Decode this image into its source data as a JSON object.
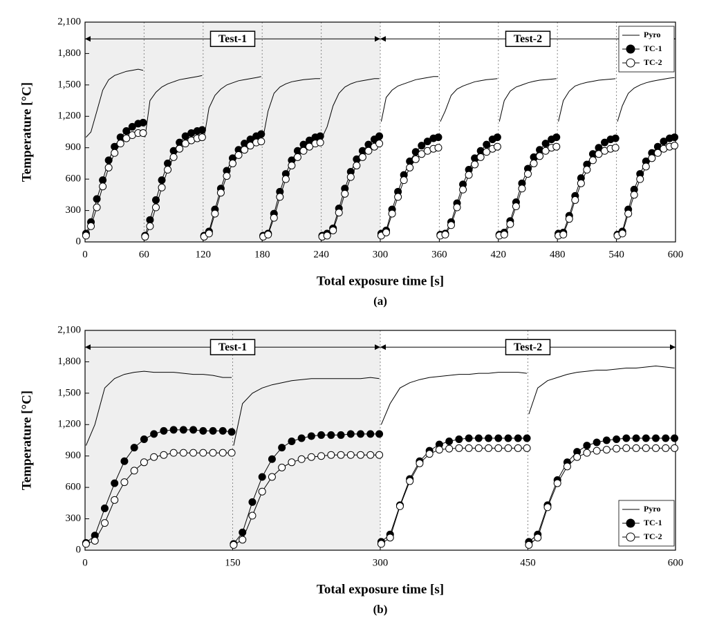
{
  "chart_data": [
    {
      "type": "line",
      "caption": "(a)",
      "x_label": "Total exposure time [s]",
      "y_label": "Temperature [°C]",
      "xlim": [
        0,
        600
      ],
      "xticks": [
        0,
        60,
        120,
        180,
        240,
        300,
        360,
        420,
        480,
        540,
        600
      ],
      "ylim": [
        0,
        2100
      ],
      "yticks": [
        0,
        300,
        600,
        900,
        {
          "value": 1200,
          "label": "1,200"
        },
        {
          "value": 1500,
          "label": "1,500"
        },
        {
          "value": 1800,
          "label": "1,800"
        },
        {
          "value": 2100,
          "label": "2,100"
        }
      ],
      "legend": "upper right",
      "spans": [
        {
          "label": "Test-1",
          "xlim": [
            0,
            300
          ],
          "y": 1940,
          "shaded": true
        },
        {
          "label": "Test-2",
          "xlim": [
            300,
            600
          ],
          "y": 1940,
          "shaded": false
        }
      ],
      "dividers": [
        60,
        120,
        180,
        240,
        300,
        360,
        420,
        480,
        540
      ],
      "x": [
        1,
        6,
        12,
        18,
        24,
        30,
        36,
        42,
        48,
        54,
        59,
        60,
        61,
        66,
        72,
        78,
        84,
        90,
        96,
        102,
        108,
        114,
        119,
        120,
        121,
        126,
        132,
        138,
        144,
        150,
        156,
        162,
        168,
        174,
        179,
        180,
        181,
        186,
        192,
        198,
        204,
        210,
        216,
        222,
        228,
        234,
        239,
        240,
        241,
        246,
        252,
        258,
        264,
        270,
        276,
        282,
        288,
        294,
        299,
        300,
        301,
        306,
        312,
        318,
        324,
        330,
        336,
        342,
        348,
        354,
        359,
        360,
        361,
        366,
        372,
        378,
        384,
        390,
        396,
        402,
        408,
        414,
        419,
        420,
        421,
        426,
        432,
        438,
        444,
        450,
        456,
        462,
        468,
        474,
        479,
        480,
        481,
        486,
        492,
        498,
        504,
        510,
        516,
        522,
        528,
        534,
        539,
        540,
        541,
        546,
        552,
        558,
        564,
        570,
        576,
        582,
        588,
        594,
        599
      ],
      "series": [
        {
          "name": "Pyro",
          "color": "#000000",
          "values": [
            1000,
            1050,
            1250,
            1450,
            1550,
            1590,
            1610,
            1630,
            1640,
            1650,
            1640,
            null,
            1000,
            1350,
            1430,
            1480,
            1510,
            1530,
            1550,
            1560,
            1570,
            1580,
            1590,
            null,
            1000,
            1280,
            1400,
            1460,
            1500,
            1520,
            1540,
            1550,
            1560,
            1570,
            1580,
            null,
            1000,
            1250,
            1420,
            1480,
            1510,
            1530,
            1540,
            1550,
            1555,
            1560,
            1560,
            null,
            1000,
            1100,
            1300,
            1420,
            1480,
            1510,
            1530,
            1540,
            1550,
            1560,
            1560,
            null,
            1150,
            1380,
            1450,
            1490,
            1510,
            1530,
            1550,
            1560,
            1570,
            1580,
            1580,
            null,
            1150,
            1250,
            1400,
            1460,
            1490,
            1510,
            1530,
            1540,
            1550,
            1555,
            1560,
            null,
            1150,
            1350,
            1440,
            1480,
            1500,
            1520,
            1535,
            1545,
            1550,
            1555,
            1560,
            null,
            1150,
            1350,
            1440,
            1490,
            1510,
            1525,
            1535,
            1545,
            1550,
            1555,
            1560,
            null,
            1150,
            1300,
            1420,
            1470,
            1500,
            1520,
            1535,
            1545,
            1555,
            1565,
            1570
          ]
        },
        {
          "name": "TC-1",
          "color": "#000000",
          "marker": "circle",
          "marker_face": "#000000",
          "values": [
            80,
            190,
            410,
            590,
            780,
            910,
            1000,
            1060,
            1100,
            1130,
            1140,
            null,
            60,
            210,
            400,
            590,
            750,
            870,
            950,
            1010,
            1040,
            1060,
            1070,
            null,
            60,
            100,
            310,
            510,
            680,
            800,
            880,
            940,
            980,
            1010,
            1030,
            null,
            60,
            80,
            270,
            480,
            650,
            780,
            870,
            930,
            970,
            1000,
            1010,
            null,
            60,
            80,
            130,
            320,
            510,
            670,
            790,
            870,
            930,
            980,
            1010,
            null,
            80,
            110,
            310,
            480,
            640,
            770,
            860,
            920,
            960,
            990,
            1000,
            null,
            70,
            80,
            190,
            370,
            550,
            690,
            800,
            870,
            930,
            980,
            1000,
            null,
            70,
            90,
            200,
            380,
            560,
            700,
            810,
            880,
            940,
            980,
            1000,
            null,
            80,
            90,
            250,
            440,
            610,
            740,
            840,
            900,
            950,
            980,
            990,
            null,
            70,
            100,
            310,
            500,
            650,
            770,
            850,
            910,
            960,
            990,
            1000
          ]
        },
        {
          "name": "TC-2",
          "color": "#000000",
          "marker": "circle",
          "marker_face": "#ffffff",
          "values": [
            60,
            150,
            330,
            530,
            710,
            850,
            940,
            990,
            1020,
            1040,
            1040,
            null,
            50,
            150,
            330,
            520,
            690,
            810,
            890,
            940,
            970,
            990,
            1000,
            null,
            50,
            80,
            270,
            470,
            630,
            750,
            830,
            880,
            920,
            950,
            960,
            null,
            50,
            70,
            230,
            430,
            600,
            730,
            810,
            870,
            910,
            940,
            950,
            null,
            50,
            60,
            110,
            280,
            460,
            620,
            730,
            810,
            870,
            910,
            940,
            null,
            60,
            90,
            270,
            430,
            590,
            710,
            790,
            840,
            870,
            890,
            900,
            null,
            60,
            70,
            160,
            330,
            500,
            640,
            740,
            810,
            860,
            890,
            910,
            null,
            60,
            70,
            170,
            340,
            510,
            650,
            750,
            820,
            870,
            900,
            910,
            null,
            60,
            70,
            220,
            400,
            560,
            690,
            780,
            840,
            870,
            890,
            900,
            null,
            60,
            80,
            270,
            450,
            600,
            720,
            800,
            850,
            890,
            910,
            920
          ]
        }
      ]
    },
    {
      "type": "line",
      "caption": "(b)",
      "x_label": "Total exposure time [s]",
      "y_label": "Temperature [°C]",
      "xlim": [
        0,
        600
      ],
      "xticks": [
        0,
        150,
        300,
        450,
        600
      ],
      "ylim": [
        0,
        2100
      ],
      "yticks": [
        0,
        300,
        600,
        900,
        {
          "value": 1200,
          "label": "1,200"
        },
        {
          "value": 1500,
          "label": "1,500"
        },
        {
          "value": 1800,
          "label": "1,800"
        },
        {
          "value": 2100,
          "label": "2,100"
        }
      ],
      "legend": "lower right",
      "spans": [
        {
          "label": "Test-1",
          "xlim": [
            0,
            300
          ],
          "y": 1940,
          "shaded": true
        },
        {
          "label": "Test-2",
          "xlim": [
            300,
            600
          ],
          "y": 1940,
          "shaded": false
        }
      ],
      "dividers": [
        150,
        300,
        450
      ],
      "x": [
        1,
        10,
        20,
        30,
        40,
        50,
        60,
        70,
        80,
        90,
        100,
        110,
        120,
        130,
        140,
        149,
        150,
        151,
        160,
        170,
        180,
        190,
        200,
        210,
        220,
        230,
        240,
        250,
        260,
        270,
        280,
        290,
        299,
        300,
        301,
        310,
        320,
        330,
        340,
        350,
        360,
        370,
        380,
        390,
        400,
        410,
        420,
        430,
        440,
        449,
        450,
        451,
        460,
        470,
        480,
        490,
        500,
        510,
        520,
        530,
        540,
        550,
        560,
        570,
        580,
        590,
        599
      ],
      "series": [
        {
          "name": "Pyro",
          "color": "#000000",
          "values": [
            1000,
            1200,
            1550,
            1640,
            1680,
            1700,
            1710,
            1700,
            1700,
            1700,
            1690,
            1680,
            1680,
            1670,
            1650,
            1650,
            null,
            1000,
            1400,
            1500,
            1550,
            1580,
            1600,
            1620,
            1630,
            1640,
            1640,
            1640,
            1640,
            1640,
            1640,
            1650,
            1640,
            null,
            1200,
            1400,
            1550,
            1600,
            1630,
            1650,
            1660,
            1670,
            1680,
            1680,
            1690,
            1690,
            1700,
            1700,
            1700,
            1690,
            null,
            1300,
            1550,
            1620,
            1650,
            1680,
            1700,
            1710,
            1720,
            1720,
            1730,
            1740,
            1740,
            1750,
            1760,
            1750,
            1740
          ]
        },
        {
          "name": "TC-1",
          "color": "#000000",
          "marker": "circle",
          "marker_face": "#000000",
          "values": [
            70,
            140,
            400,
            640,
            850,
            980,
            1060,
            1110,
            1140,
            1150,
            1150,
            1150,
            1140,
            1140,
            1140,
            1130,
            null,
            60,
            170,
            460,
            700,
            870,
            980,
            1040,
            1070,
            1090,
            1100,
            1100,
            1100,
            1110,
            1110,
            1110,
            1110,
            null,
            80,
            150,
            430,
            680,
            850,
            950,
            1010,
            1040,
            1060,
            1070,
            1070,
            1070,
            1070,
            1070,
            1070,
            1070,
            null,
            80,
            150,
            430,
            670,
            840,
            940,
            1000,
            1030,
            1050,
            1060,
            1070,
            1070,
            1070,
            1070,
            1070,
            1070
          ]
        },
        {
          "name": "TC-2",
          "color": "#000000",
          "marker": "circle",
          "marker_face": "#ffffff",
          "values": [
            60,
            90,
            260,
            480,
            650,
            760,
            840,
            890,
            910,
            930,
            930,
            930,
            930,
            930,
            930,
            930,
            null,
            50,
            100,
            330,
            560,
            700,
            790,
            840,
            870,
            890,
            900,
            910,
            910,
            910,
            910,
            910,
            910,
            null,
            60,
            120,
            420,
            660,
            830,
            920,
            960,
            970,
            975,
            975,
            975,
            975,
            975,
            975,
            975,
            975,
            null,
            50,
            120,
            410,
            640,
            800,
            890,
            930,
            950,
            960,
            970,
            975,
            975,
            975,
            975,
            975,
            975
          ]
        }
      ]
    }
  ]
}
